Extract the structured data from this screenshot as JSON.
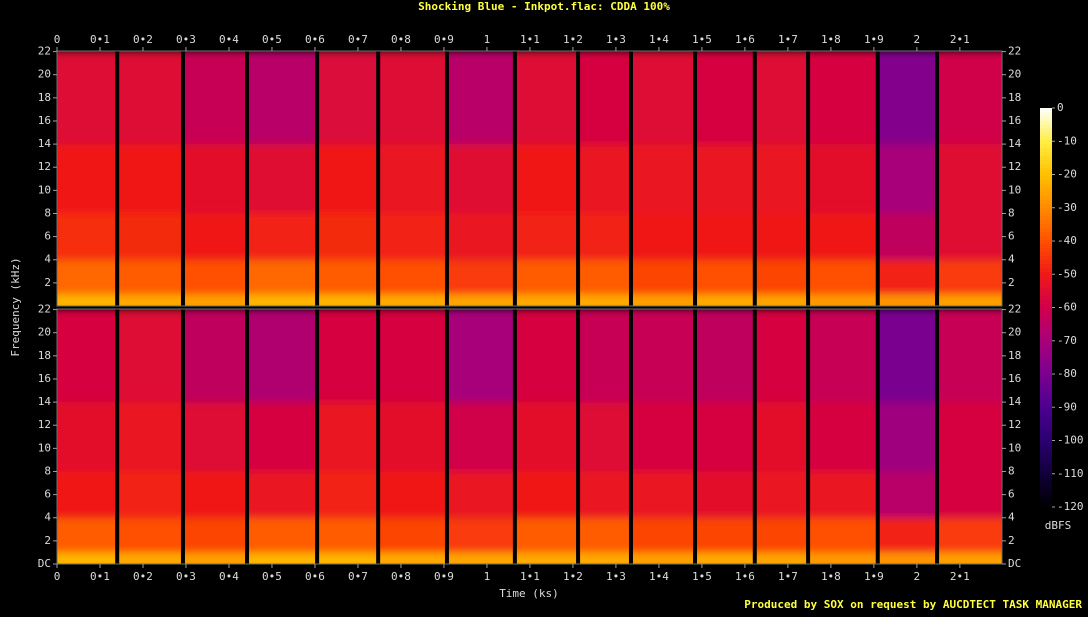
{
  "chart_data": {
    "type": "spectrogram",
    "title": "Shocking Blue - Inkpot.flac: CDDA 100%",
    "xlabel": "Time (ks)",
    "ylabel": "Frequency (kHz)",
    "zlabel": "dBFS",
    "footer": "Produced by SOX on request by AUCDTECT TASK MANAGER",
    "xlim": [
      0,
      2.198
    ],
    "xticks": [
      0,
      {
        "value": 0.1,
        "label": "0•1"
      },
      {
        "value": 0.2,
        "label": "0•2"
      },
      {
        "value": 0.3,
        "label": "0•3"
      },
      {
        "value": 0.4,
        "label": "0•4"
      },
      {
        "value": 0.5,
        "label": "0•5"
      },
      {
        "value": 0.6,
        "label": "0•6"
      },
      {
        "value": 0.7,
        "label": "0•7"
      },
      {
        "value": 0.8,
        "label": "0•8"
      },
      {
        "value": 0.9,
        "label": "0•9"
      },
      1,
      {
        "value": 1.1,
        "label": "1•1"
      },
      {
        "value": 1.2,
        "label": "1•2"
      },
      {
        "value": 1.3,
        "label": "1•3"
      },
      {
        "value": 1.4,
        "label": "1•4"
      },
      {
        "value": 1.5,
        "label": "1•5"
      },
      {
        "value": 1.6,
        "label": "1•6"
      },
      {
        "value": 1.7,
        "label": "1•7"
      },
      {
        "value": 1.8,
        "label": "1•8"
      },
      {
        "value": 1.9,
        "label": "1•9"
      },
      2,
      {
        "value": 2.1,
        "label": "2•1"
      }
    ],
    "ylim": [
      0,
      22.05
    ],
    "zlim": [
      -120,
      0
    ],
    "zticks": [
      0,
      -10,
      -20,
      -30,
      -40,
      -50,
      -60,
      -70,
      -80,
      -90,
      -100,
      -110,
      -120
    ],
    "colorscale": [
      "#000000",
      "#10003a",
      "#2a0070",
      "#4c0090",
      "#7a0090",
      "#a8007a",
      "#d0004a",
      "#f01818",
      "#ff5000",
      "#ff8a00",
      "#ffc000",
      "#ffee40",
      "#ffffff"
    ],
    "time_edges": [
      0,
      0.14,
      0.293,
      0.442,
      0.605,
      0.747,
      0.907,
      1.065,
      1.212,
      1.335,
      1.484,
      1.623,
      1.747,
      1.909,
      2.047,
      2.198
    ],
    "freq_edges": [
      0,
      1,
      4,
      8,
      14,
      22.05
    ],
    "channels": [
      {
        "yticks": [
          2,
          4,
          6,
          8,
          10,
          12,
          14,
          16,
          18,
          20,
          22
        ],
        "values": [
          [
            -22,
            -24,
            -26,
            -22,
            -22,
            -24,
            -25,
            -24,
            -24,
            -26,
            -24,
            -25,
            -27,
            -28,
            -26
          ],
          [
            -36,
            -38,
            -40,
            -36,
            -38,
            -40,
            -44,
            -38,
            -38,
            -42,
            -40,
            -42,
            -40,
            -48,
            -44
          ],
          [
            -46,
            -47,
            -50,
            -48,
            -47,
            -48,
            -52,
            -48,
            -48,
            -50,
            -50,
            -50,
            -50,
            -64,
            -55
          ],
          [
            -50,
            -50,
            -54,
            -55,
            -50,
            -52,
            -55,
            -50,
            -52,
            -52,
            -52,
            -52,
            -54,
            -70,
            -55
          ],
          [
            -56,
            -56,
            -62,
            -66,
            -57,
            -56,
            -66,
            -56,
            -58,
            -56,
            -58,
            -56,
            -58,
            -78,
            -60
          ]
        ]
      },
      {
        "yticks": [
          {
            "value": 0,
            "label": "DC"
          },
          2,
          4,
          6,
          8,
          10,
          12,
          14,
          16,
          18,
          20,
          22
        ],
        "values": [
          [
            -22,
            -24,
            -26,
            -22,
            -22,
            -24,
            -25,
            -24,
            -24,
            -26,
            -24,
            -25,
            -27,
            -28,
            -26
          ],
          [
            -38,
            -40,
            -42,
            -38,
            -38,
            -42,
            -44,
            -38,
            -38,
            -42,
            -42,
            -42,
            -40,
            -48,
            -44
          ],
          [
            -50,
            -48,
            -50,
            -52,
            -48,
            -50,
            -52,
            -50,
            -52,
            -52,
            -54,
            -52,
            -52,
            -66,
            -58
          ],
          [
            -54,
            -52,
            -56,
            -58,
            -52,
            -54,
            -60,
            -54,
            -56,
            -58,
            -58,
            -54,
            -58,
            -72,
            -58
          ],
          [
            -58,
            -56,
            -64,
            -68,
            -58,
            -58,
            -70,
            -58,
            -62,
            -62,
            -64,
            -58,
            -62,
            -80,
            -62
          ]
        ]
      }
    ]
  }
}
